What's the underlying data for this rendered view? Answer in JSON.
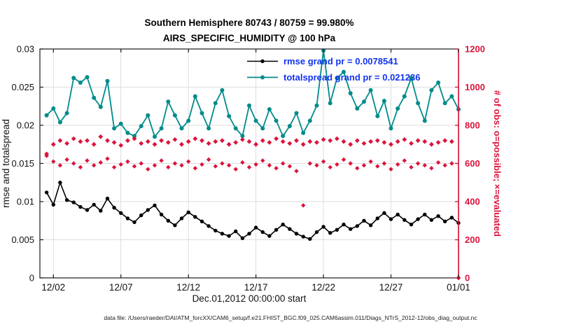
{
  "figure": {
    "title_line1": "Southern Hemisphere 80743 / 80759 = 99.980%",
    "title_line2": "AIRS_SPECIFIC_HUMIDITY @ 100 hPa",
    "footer": "data file: /Users/raeder/DAI/ATM_forcXX/CAM6_setup/f.e21.FHIST_BGC.f09_025.CAM6assim.011/Diags_NTrS_2012-12/obs_diag_output.nc"
  },
  "chart_data": {
    "type": "line",
    "title": "Southern Hemisphere 80743 / 80759 = 99.980%",
    "subtitle": "AIRS_SPECIFIC_HUMIDITY @ 100 hPa",
    "xlabel": "Dec.01,2012 00:00:00 start",
    "ylabel_left": "rmse and totalspread",
    "ylabel_right": "# of obs: o=possible; ×=evaluated",
    "grid": true,
    "legend_position": "top-center-inside",
    "xlim": [
      1,
      32
    ],
    "ylim_left": [
      0,
      0.03
    ],
    "ylim_right": [
      0,
      1200
    ],
    "x_ticks": [
      {
        "value": 2,
        "label": "12/02"
      },
      {
        "value": 7,
        "label": "12/07"
      },
      {
        "value": 12,
        "label": "12/12"
      },
      {
        "value": 17,
        "label": "12/17"
      },
      {
        "value": 22,
        "label": "12/22"
      },
      {
        "value": 27,
        "label": "12/27"
      },
      {
        "value": 32,
        "label": "01/01"
      }
    ],
    "y_ticks_left": [
      {
        "value": 0,
        "label": "0"
      },
      {
        "value": 0.005,
        "label": "0.005"
      },
      {
        "value": 0.01,
        "label": "0.01"
      },
      {
        "value": 0.015,
        "label": "0.015"
      },
      {
        "value": 0.02,
        "label": "0.02"
      },
      {
        "value": 0.025,
        "label": "0.025"
      },
      {
        "value": 0.03,
        "label": "0.03"
      }
    ],
    "y_ticks_right": [
      {
        "value": 0,
        "label": "0"
      },
      {
        "value": 200,
        "label": "200"
      },
      {
        "value": 400,
        "label": "400"
      },
      {
        "value": 600,
        "label": "600"
      },
      {
        "value": 800,
        "label": "800"
      },
      {
        "value": 1000,
        "label": "1000"
      },
      {
        "value": 1200,
        "label": "1200"
      }
    ],
    "colors": {
      "rmse": "#000000",
      "totalspread": "#008b8b",
      "obs": "#dc143c",
      "right_axis": "#dc143c",
      "axis": "#1a1a1a",
      "grid": "#dedede",
      "legend_text": "#1133ee"
    },
    "x": [
      1.5,
      2,
      2.5,
      3,
      3.5,
      4,
      4.5,
      5,
      5.5,
      6,
      6.5,
      7,
      7.5,
      8,
      8.5,
      9,
      9.5,
      10,
      10.5,
      11,
      11.5,
      12,
      12.5,
      13,
      13.5,
      14,
      14.5,
      15,
      15.5,
      16,
      16.5,
      17,
      17.5,
      18,
      18.5,
      19,
      19.5,
      20,
      20.5,
      21,
      21.5,
      22,
      22.5,
      23,
      23.5,
      24,
      24.5,
      25,
      25.5,
      26,
      26.5,
      27,
      27.5,
      28,
      28.5,
      29,
      29.5,
      30,
      30.5,
      31,
      31.5,
      32
    ],
    "series": [
      {
        "name": "rmse",
        "legend": "rmse grand pr = 0.0078541",
        "grand_mean": 0.0078541,
        "axis": "left",
        "style": "line-marker",
        "marker": "circle",
        "marker_size": 2.7,
        "line_width": 1.6,
        "color": "#000000",
        "values": [
          0.0112,
          0.0096,
          0.0125,
          0.0102,
          0.0099,
          0.0093,
          0.0089,
          0.0096,
          0.0088,
          0.0104,
          0.0092,
          0.0085,
          0.0078,
          0.0073,
          0.0082,
          0.0089,
          0.0095,
          0.0083,
          0.0075,
          0.0069,
          0.0078,
          0.0086,
          0.008,
          0.0074,
          0.0068,
          0.0062,
          0.0058,
          0.0055,
          0.0061,
          0.0052,
          0.0058,
          0.0066,
          0.006,
          0.0055,
          0.0063,
          0.007,
          0.0064,
          0.0058,
          0.0054,
          0.0051,
          0.006,
          0.0067,
          0.0059,
          0.0063,
          0.007,
          0.0064,
          0.0068,
          0.0075,
          0.0069,
          0.0078,
          0.0085,
          0.0077,
          0.0083,
          0.0076,
          0.007,
          0.0077,
          0.0083,
          0.0076,
          0.0081,
          0.0074,
          0.0079,
          0.0072
        ]
      },
      {
        "name": "totalspread",
        "legend": "totalspread grand pr = 0.021236",
        "grand_mean": 0.021236,
        "axis": "left",
        "style": "line-marker",
        "marker": "circle",
        "marker_size": 3,
        "line_width": 1.8,
        "color": "#008b8b",
        "values": [
          0.0213,
          0.0222,
          0.0204,
          0.0216,
          0.0262,
          0.0256,
          0.0263,
          0.0236,
          0.0224,
          0.0258,
          0.0196,
          0.0202,
          0.019,
          0.0186,
          0.0199,
          0.0213,
          0.0185,
          0.0196,
          0.0231,
          0.0213,
          0.0196,
          0.0206,
          0.0238,
          0.0216,
          0.0196,
          0.0229,
          0.0246,
          0.0212,
          0.0196,
          0.0186,
          0.0226,
          0.0206,
          0.0196,
          0.0221,
          0.0206,
          0.0186,
          0.0199,
          0.0216,
          0.019,
          0.0206,
          0.0226,
          0.0298,
          0.0229,
          0.0262,
          0.027,
          0.0242,
          0.0222,
          0.0231,
          0.0246,
          0.0212,
          0.0232,
          0.0196,
          0.0222,
          0.0238,
          0.0262,
          0.0229,
          0.0206,
          0.0246,
          0.0256,
          0.0229,
          0.0238,
          0.0221
        ]
      },
      {
        "name": "obs-possible",
        "legend": null,
        "axis": "right",
        "style": "scatter",
        "marker": "diamond",
        "marker_size": 3.4,
        "line_width": 0,
        "color": "#dc143c",
        "values": [
          650,
          700,
          720,
          705,
          730,
          715,
          720,
          700,
          740,
          720,
          710,
          695,
          720,
          730,
          705,
          715,
          700,
          720,
          710,
          725,
          700,
          715,
          730,
          720,
          705,
          715,
          720,
          700,
          710,
          725,
          715,
          700,
          720,
          710,
          730,
          715,
          705,
          720,
          700,
          715,
          710,
          725,
          720,
          730,
          715,
          700,
          720,
          705,
          715,
          720,
          710,
          700,
          715,
          725,
          705,
          720,
          715,
          700,
          710,
          720,
          715,
          0
        ]
      },
      {
        "name": "obs-evaluated",
        "legend": null,
        "axis": "right",
        "style": "scatter",
        "marker": "diamond",
        "marker_size": 3.2,
        "line_width": 0,
        "color": "#dc143c",
        "values": [
          640,
          610,
          590,
          620,
          600,
          580,
          615,
          590,
          605,
          625,
          580,
          595,
          610,
          585,
          600,
          570,
          590,
          615,
          580,
          600,
          590,
          610,
          575,
          595,
          620,
          585,
          600,
          590,
          570,
          605,
          580,
          595,
          615,
          590,
          575,
          600,
          585,
          560,
          380,
          600,
          590,
          610,
          580,
          595,
          620,
          600,
          575,
          590,
          610,
          585,
          600,
          570,
          595,
          615,
          580,
          600,
          590,
          575,
          605,
          590,
          600,
          0
        ]
      }
    ]
  }
}
